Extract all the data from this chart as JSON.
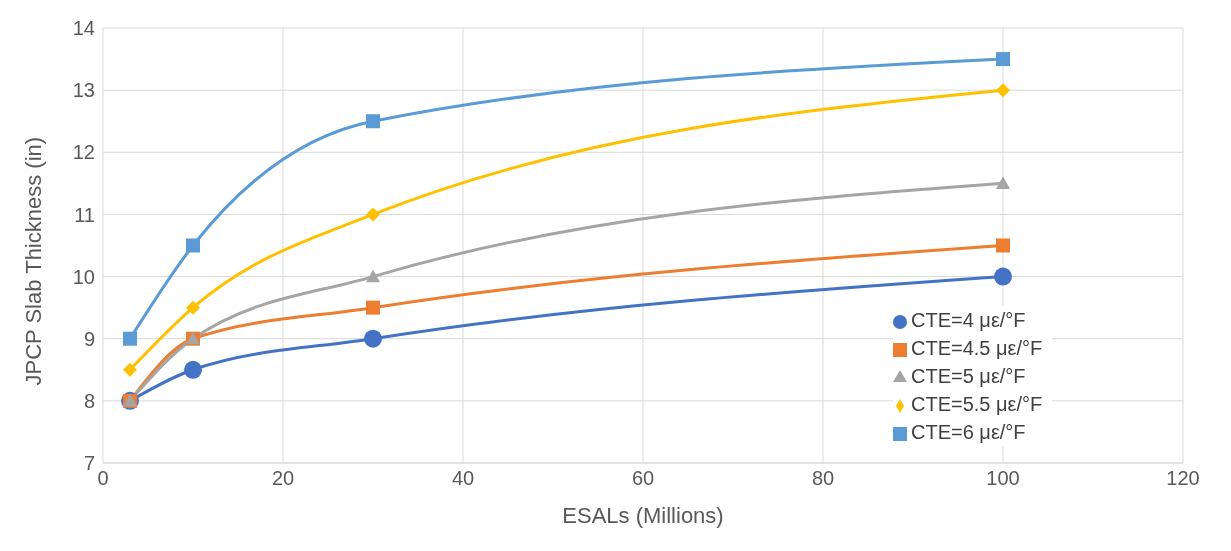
{
  "chart_data": {
    "type": "line",
    "xlabel": "ESALs (Millions)",
    "ylabel": "JPCP Slab Thickness (in)",
    "x": [
      3,
      10,
      30,
      100
    ],
    "series": [
      {
        "name": "CTE=4 με/°F",
        "color": "#4472c4",
        "marker": "circle",
        "values": [
          8,
          8.5,
          9,
          10
        ]
      },
      {
        "name": "CTE=4.5 με/°F",
        "color": "#ed7d31",
        "marker": "square",
        "values": [
          8,
          9,
          9.5,
          10.5
        ]
      },
      {
        "name": "CTE=5 με/°F",
        "color": "#a5a5a5",
        "marker": "triangle",
        "values": [
          8,
          9,
          10,
          11.5
        ]
      },
      {
        "name": "CTE=5.5 με/°F",
        "color": "#ffc000",
        "marker": "diamond",
        "values": [
          8.5,
          9.5,
          11,
          13
        ]
      },
      {
        "name": "CTE=6 με/°F",
        "color": "#5b9bd5",
        "marker": "square",
        "values": [
          9,
          10.5,
          12.5,
          13.5
        ]
      }
    ],
    "xlim": [
      0,
      120
    ],
    "xticks": [
      0,
      20,
      40,
      60,
      80,
      100,
      120
    ],
    "ylim": [
      7,
      14
    ],
    "yticks": [
      7,
      8,
      9,
      10,
      11,
      12,
      13,
      14
    ],
    "grid": true,
    "legend": "bottom right",
    "line_style": "solid"
  }
}
